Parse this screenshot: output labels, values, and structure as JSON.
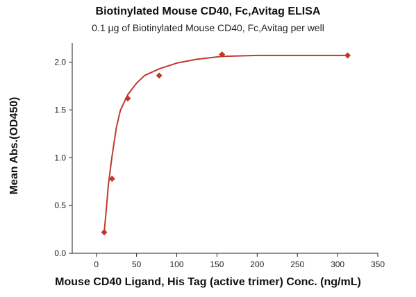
{
  "chart_data": {
    "type": "scatter",
    "title": "Biotinylated Mouse CD40, Fc,Avitag ELISA",
    "subtitle": "0.1 µg of Biotinylated Mouse CD40, Fc,Avitag per well",
    "xlabel": "Mouse CD40 Ligand, His Tag (active trimer) Conc. (ng/mL)",
    "ylabel": "Mean Abs.(OD450)",
    "xlim": [
      -30,
      350
    ],
    "ylim": [
      0,
      2.2
    ],
    "xticks": [
      0,
      50,
      100,
      150,
      200,
      250,
      300,
      350
    ],
    "yticks": [
      0.0,
      0.5,
      1.0,
      1.5,
      2.0
    ],
    "ytick_labels": [
      "0.0",
      "0.5",
      "1.0",
      "1.5",
      "2.0"
    ],
    "grid": false,
    "marker_color": "#c0392b",
    "curve_color": "#c0392b",
    "series": [
      {
        "x": [
          9.77,
          19.53,
          39.06,
          78.13,
          156.25,
          312.5
        ],
        "y": [
          0.22,
          0.78,
          1.62,
          1.86,
          2.08,
          2.07
        ]
      }
    ],
    "fit_curve": {
      "x": [
        9.77,
        12,
        15,
        19.53,
        25,
        30,
        39.06,
        50,
        60,
        78.13,
        100,
        125,
        156.25,
        200,
        250,
        312.5
      ],
      "y": [
        0.22,
        0.42,
        0.72,
        1.02,
        1.32,
        1.5,
        1.66,
        1.78,
        1.86,
        1.93,
        1.99,
        2.03,
        2.06,
        2.07,
        2.07,
        2.07
      ]
    }
  }
}
